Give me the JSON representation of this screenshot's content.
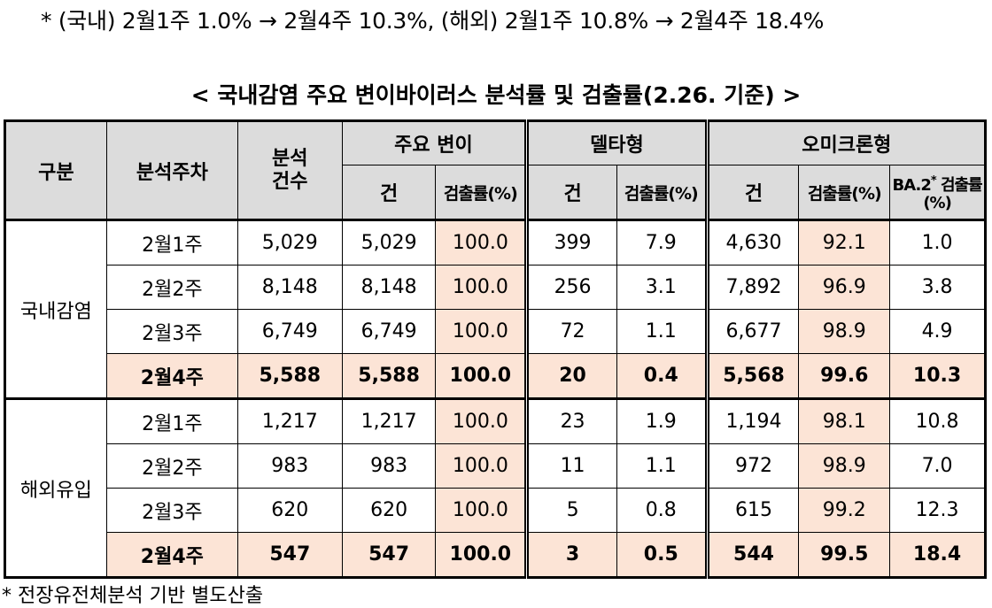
{
  "top_note": "* (국내) 2월1주 1.0% → 2월4주 10.3%, (해외) 2월1주 10.8% → 2월4주 18.4%",
  "title": "< 국내감염 주요 변이바이러스 분석률 및 검출률(2.26. 기준) >",
  "headers": {
    "category": "구분",
    "week": "분석주차",
    "analyzed": "분석\n건수",
    "major_variant": "주요 변이",
    "delta": "델타형",
    "omicron": "오미크론형",
    "count": "건",
    "rate": "검출률(%)",
    "ba2_main": "BA.2",
    "ba2_star": "*",
    "ba2_rest": " 검출률(%)"
  },
  "groups": [
    {
      "label": "국내감염",
      "rows": [
        {
          "week": "2월1주",
          "analyzed": "5,029",
          "major_count": "5,029",
          "major_rate": "100.0",
          "delta_count": "399",
          "delta_rate": "7.9",
          "omicron_count": "4,630",
          "omicron_rate": "92.1",
          "ba2_rate": "1.0"
        },
        {
          "week": "2월2주",
          "analyzed": "8,148",
          "major_count": "8,148",
          "major_rate": "100.0",
          "delta_count": "256",
          "delta_rate": "3.1",
          "omicron_count": "7,892",
          "omicron_rate": "96.9",
          "ba2_rate": "3.8"
        },
        {
          "week": "2월3주",
          "analyzed": "6,749",
          "major_count": "6,749",
          "major_rate": "100.0",
          "delta_count": "72",
          "delta_rate": "1.1",
          "omicron_count": "6,677",
          "omicron_rate": "98.9",
          "ba2_rate": "4.9"
        },
        {
          "week": "2월4주",
          "analyzed": "5,588",
          "major_count": "5,588",
          "major_rate": "100.0",
          "delta_count": "20",
          "delta_rate": "0.4",
          "omicron_count": "5,568",
          "omicron_rate": "99.6",
          "ba2_rate": "10.3"
        }
      ]
    },
    {
      "label": "해외유입",
      "rows": [
        {
          "week": "2월1주",
          "analyzed": "1,217",
          "major_count": "1,217",
          "major_rate": "100.0",
          "delta_count": "23",
          "delta_rate": "1.9",
          "omicron_count": "1,194",
          "omicron_rate": "98.1",
          "ba2_rate": "10.8"
        },
        {
          "week": "2월2주",
          "analyzed": "983",
          "major_count": "983",
          "major_rate": "100.0",
          "delta_count": "11",
          "delta_rate": "1.1",
          "omicron_count": "972",
          "omicron_rate": "98.9",
          "ba2_rate": "7.0"
        },
        {
          "week": "2월3주",
          "analyzed": "620",
          "major_count": "620",
          "major_rate": "100.0",
          "delta_count": "5",
          "delta_rate": "0.8",
          "omicron_count": "615",
          "omicron_rate": "99.2",
          "ba2_rate": "12.3"
        },
        {
          "week": "2월4주",
          "analyzed": "547",
          "major_count": "547",
          "major_rate": "100.0",
          "delta_count": "3",
          "delta_rate": "0.5",
          "omicron_count": "544",
          "omicron_rate": "99.5",
          "ba2_rate": "18.4"
        }
      ]
    }
  ],
  "bottom_note": "* 전장유전체분석 기반 별도산출",
  "colors": {
    "header_bg": "#dcdcdc",
    "highlight_bg": "#fce4d6"
  }
}
